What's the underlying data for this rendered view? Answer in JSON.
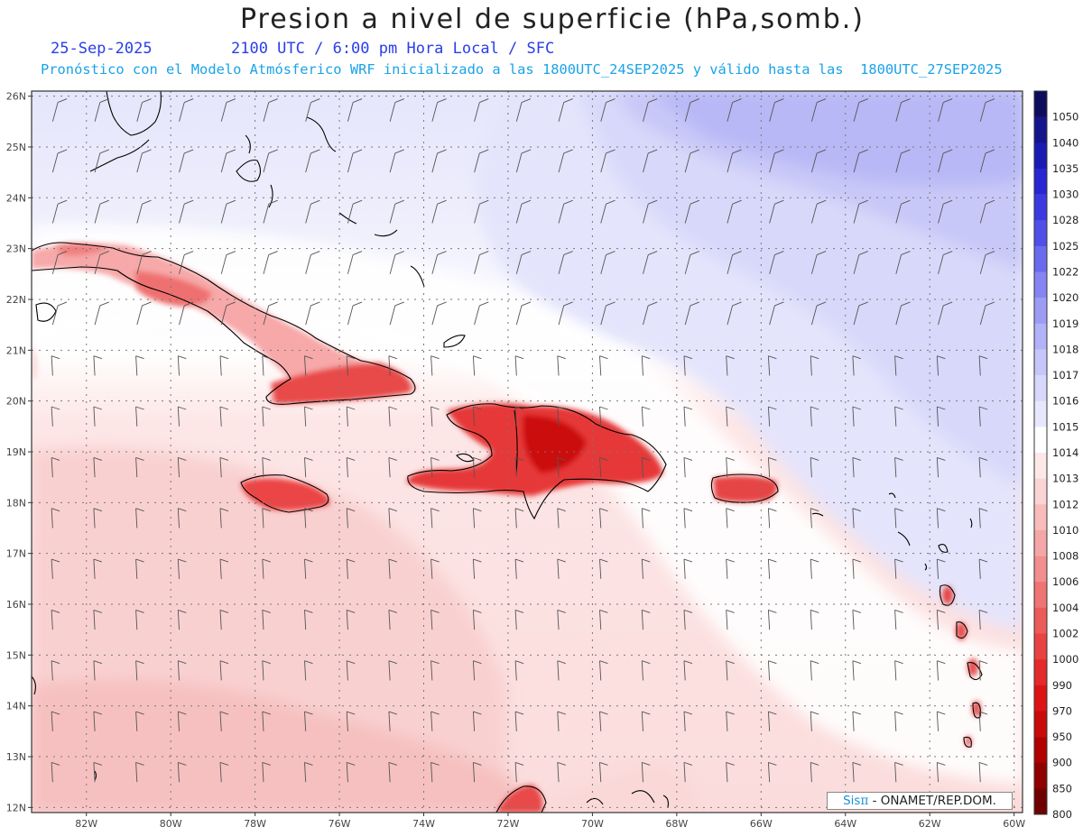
{
  "header": {
    "title": "Presion a nivel de superficie (hPa,somb.)",
    "date": "25-Sep-2025",
    "time": "2100 UTC / 6:00 pm Hora Local / SFC",
    "subtitle": "Pronóstico con el Modelo Atmósferico WRF inicializado a las 1800UTC_24SEP2025 y válido hasta las  1800UTC_27SEP2025"
  },
  "axes": {
    "lon_labels": [
      "82W",
      "80W",
      "78W",
      "76W",
      "74W",
      "72W",
      "70W",
      "68W",
      "66W",
      "64W",
      "62W",
      "60W"
    ],
    "lat_labels": [
      "26N",
      "25N",
      "24N",
      "23N",
      "22N",
      "21N",
      "20N",
      "19N",
      "18N",
      "17N",
      "16N",
      "15N",
      "14N",
      "13N",
      "12N"
    ],
    "lon_range": [
      -83.3,
      -59.8
    ],
    "lat_range": [
      11.9,
      26.1
    ],
    "grid": true
  },
  "colorbar": {
    "levels": [
      "1050",
      "1040",
      "1035",
      "1030",
      "1028",
      "1025",
      "1022",
      "1020",
      "1019",
      "1018",
      "1017",
      "1016",
      "1015",
      "1014",
      "1013",
      "1012",
      "1010",
      "1008",
      "1006",
      "1004",
      "1002",
      "1000",
      "990",
      "970",
      "950",
      "900",
      "850",
      "800"
    ],
    "colors": [
      "#0d0d5c",
      "#14148c",
      "#1a1ab4",
      "#2626d2",
      "#3a3ae0",
      "#5050e8",
      "#6a6aee",
      "#8484f2",
      "#9c9cf5",
      "#b2b2f8",
      "#c6c6fa",
      "#d8d8fc",
      "#e8e8fd",
      "#ffffff",
      "#fde8e8",
      "#fbd4d4",
      "#f8bcbc",
      "#f5a6a6",
      "#f28e8e",
      "#ef7474",
      "#ec5a5a",
      "#e84242",
      "#e42a2a",
      "#dc1414",
      "#c80a0a",
      "#b00000",
      "#900000",
      "#700000"
    ]
  },
  "credit": {
    "brand": "Sis",
    "brand_symbol": "π",
    "text": "- ONAMET/REP.DOM."
  }
}
